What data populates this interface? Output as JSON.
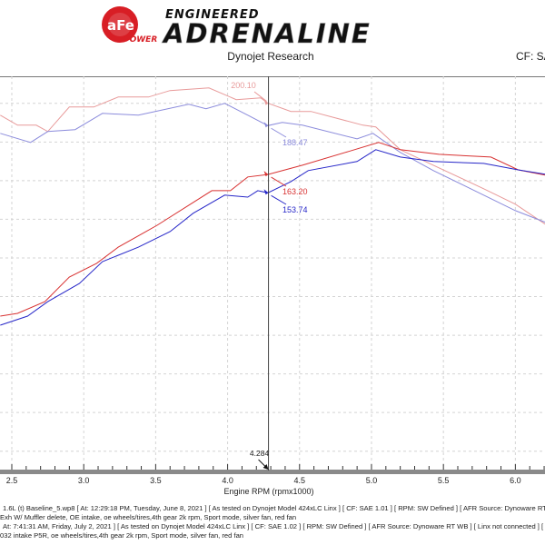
{
  "header": {
    "logo_text": "aFe POWER ENGINEERED ADRENALINE",
    "title": "Dynojet Research",
    "cf_label": "CF: SA"
  },
  "chart_data": {
    "type": "line",
    "xlabel": "Engine RPM (rpmx1000)",
    "ylabel": "",
    "xlim": [
      2.418,
      6.206
    ],
    "ylim": [
      10,
      214
    ],
    "x_ticks": [
      "2.5",
      "3.0",
      "3.5",
      "4.0",
      "4.5",
      "5.0",
      "5.5",
      "6.0"
    ],
    "x_tick_values": [
      2.5,
      3.0,
      3.5,
      4.0,
      4.5,
      5.0,
      5.5,
      6.0
    ],
    "y_grid_values": [
      20,
      40,
      60,
      80,
      100,
      120,
      140,
      160,
      180,
      200
    ],
    "grid": true,
    "cursor": {
      "x": 4.284,
      "label": "4.284"
    },
    "series": [
      {
        "color": "#e89a9a",
        "cursor_value": "200.10",
        "points": [
          [
            2.42,
            193.9
          ],
          [
            2.54,
            188.7
          ],
          [
            2.67,
            188.7
          ],
          [
            2.75,
            185.4
          ],
          [
            2.9,
            198.1
          ],
          [
            3.07,
            198.1
          ],
          [
            3.24,
            203.3
          ],
          [
            3.45,
            203.3
          ],
          [
            3.6,
            206.6
          ],
          [
            3.87,
            208.0
          ],
          [
            4.06,
            201.9
          ],
          [
            4.23,
            202.8
          ],
          [
            4.28,
            200.1
          ],
          [
            4.44,
            195.8
          ],
          [
            4.58,
            195.8
          ],
          [
            4.94,
            188.7
          ],
          [
            5.03,
            187.8
          ],
          [
            5.2,
            176.0
          ],
          [
            5.43,
            168.0
          ],
          [
            5.78,
            155.8
          ],
          [
            6.0,
            147.8
          ],
          [
            6.21,
            137.4
          ]
        ]
      },
      {
        "color": "#8c8cdc",
        "cursor_value": "188.47",
        "points": [
          [
            2.42,
            184.5
          ],
          [
            2.63,
            179.8
          ],
          [
            2.75,
            185.4
          ],
          [
            2.94,
            186.4
          ],
          [
            3.13,
            194.8
          ],
          [
            3.38,
            193.9
          ],
          [
            3.73,
            199.5
          ],
          [
            3.85,
            197.2
          ],
          [
            3.98,
            200.0
          ],
          [
            4.14,
            193.9
          ],
          [
            4.28,
            188.5
          ],
          [
            4.38,
            190.1
          ],
          [
            4.52,
            188.7
          ],
          [
            4.9,
            181.6
          ],
          [
            5.01,
            184.5
          ],
          [
            5.2,
            174.6
          ],
          [
            5.43,
            165.2
          ],
          [
            5.78,
            152.5
          ],
          [
            6.0,
            144.5
          ],
          [
            6.21,
            138.4
          ]
        ]
      },
      {
        "color": "#d83232",
        "cursor_value": "163.20",
        "points": [
          [
            2.42,
            89.9
          ],
          [
            2.54,
            91.3
          ],
          [
            2.73,
            97.4
          ],
          [
            2.9,
            110.1
          ],
          [
            3.09,
            117.2
          ],
          [
            3.24,
            125.6
          ],
          [
            3.51,
            136.9
          ],
          [
            3.76,
            148.7
          ],
          [
            3.89,
            154.8
          ],
          [
            4.02,
            154.8
          ],
          [
            4.14,
            161.9
          ],
          [
            4.28,
            163.2
          ],
          [
            4.52,
            168.0
          ],
          [
            4.84,
            175.1
          ],
          [
            5.05,
            179.8
          ],
          [
            5.2,
            176.0
          ],
          [
            5.47,
            173.6
          ],
          [
            5.83,
            172.2
          ],
          [
            6.02,
            165.6
          ],
          [
            6.21,
            162.8
          ]
        ]
      },
      {
        "color": "#2626c8",
        "cursor_value": "153.74",
        "points": [
          [
            2.42,
            85.2
          ],
          [
            2.61,
            89.9
          ],
          [
            2.75,
            97.4
          ],
          [
            2.97,
            106.8
          ],
          [
            3.13,
            118.1
          ],
          [
            3.38,
            125.6
          ],
          [
            3.6,
            133.6
          ],
          [
            3.76,
            143.1
          ],
          [
            3.98,
            152.5
          ],
          [
            4.14,
            151.5
          ],
          [
            4.21,
            154.8
          ],
          [
            4.28,
            153.7
          ],
          [
            4.44,
            159.5
          ],
          [
            4.56,
            165.2
          ],
          [
            4.9,
            169.9
          ],
          [
            5.03,
            176.0
          ],
          [
            5.2,
            172.2
          ],
          [
            5.43,
            169.9
          ],
          [
            5.78,
            168.9
          ],
          [
            6.02,
            165.6
          ],
          [
            6.21,
            163.3
          ]
        ]
      }
    ]
  },
  "footer": {
    "line1": "1.6L (t) Baseline_5.wp8 [ At: 12:29:18 PM, Tuesday, June 8, 2021 ] [ As tested on Dynojet Model 424xLC Linx ] [ CF: SAE 1.01 ] [ RPM: SW Defined ] [ AFR Source: Dynoware RT",
    "line2": "Exh W/ Muffler delete, OE intake, oe wheels/tires,4th gear 2k rpm, Sport mode, silver fan, red fan",
    "line3": "At: 7:41:31 AM, Friday, July 2, 2021 ] [ As tested on Dynojet Model 424xLC Linx ] [ CF: SAE 1.02 ] [ RPM: SW Defined ] [ AFR Source: Dynoware RT WB ] [ Linx not connected ] [",
    "line4": "032  intake P5R, oe wheels/tires,4th gear 2k rpm, Sport mode, silver fan, red fan"
  }
}
